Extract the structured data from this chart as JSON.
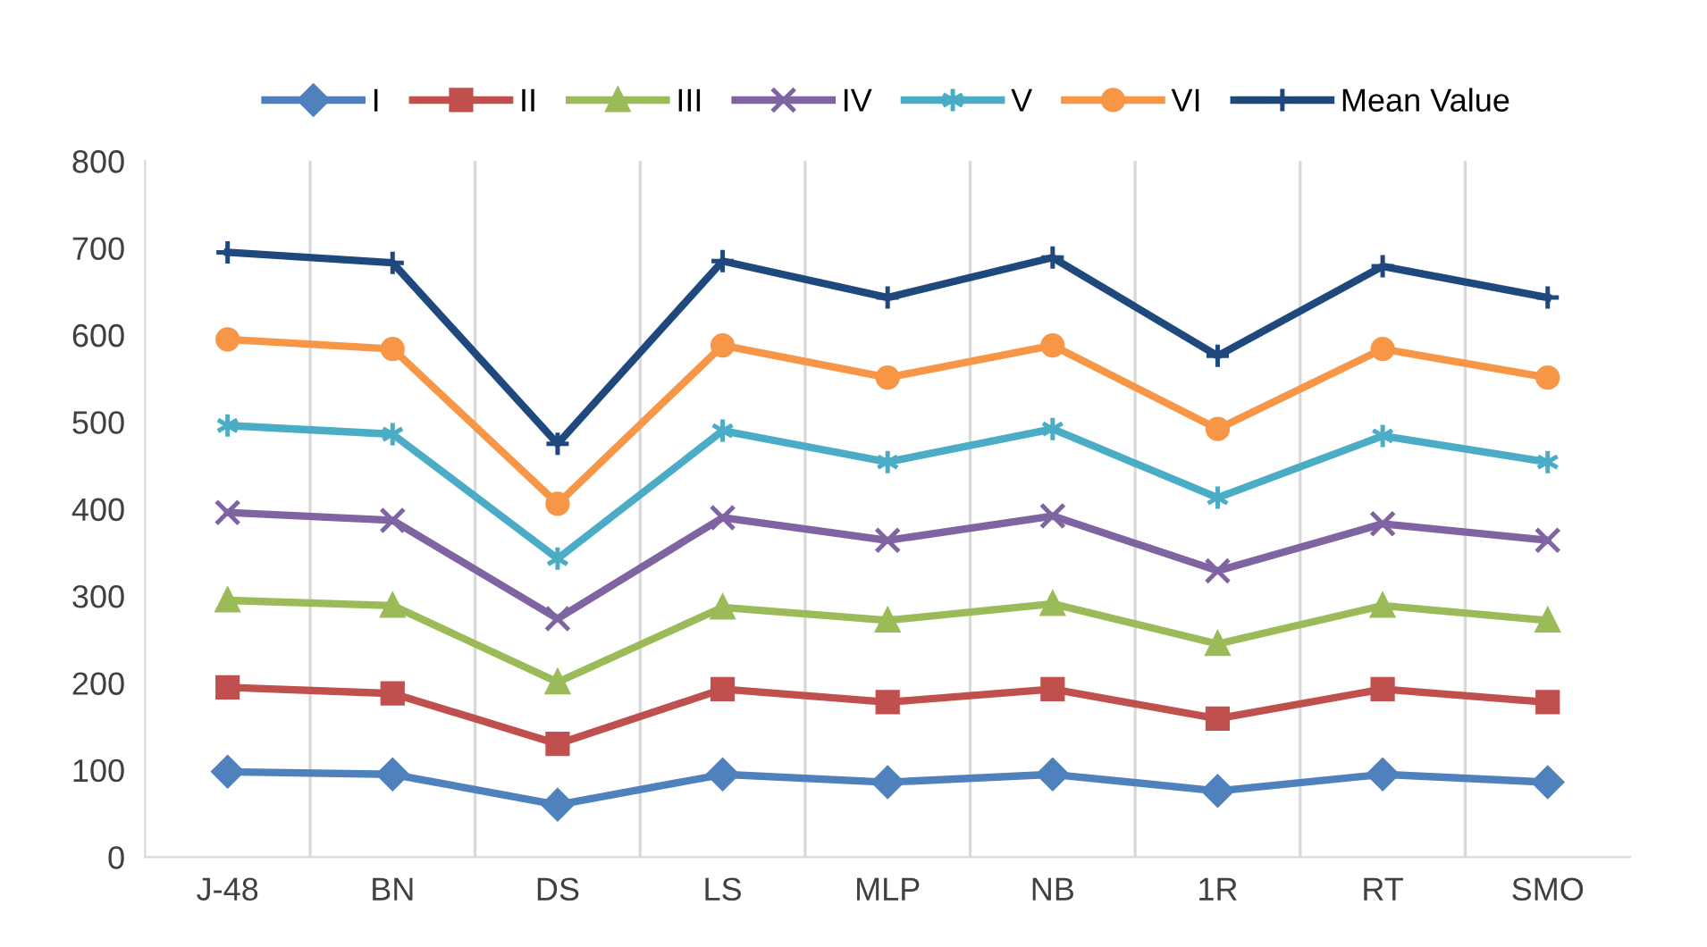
{
  "chart_data": {
    "type": "line",
    "categories": [
      "J-48",
      "BN",
      "DS",
      "LS",
      "MLP",
      "NB",
      "1R",
      "RT",
      "SMO"
    ],
    "series": [
      {
        "name": "I",
        "color": "#4f81bd",
        "marker": "diamond",
        "values": [
          98,
          95,
          60,
          95,
          86,
          95,
          76,
          95,
          86
        ]
      },
      {
        "name": "II",
        "color": "#c0504d",
        "marker": "square",
        "values": [
          195,
          188,
          130,
          193,
          178,
          193,
          159,
          193,
          178
        ]
      },
      {
        "name": "III",
        "color": "#9bbb59",
        "marker": "triangle",
        "values": [
          295,
          289,
          201,
          287,
          272,
          291,
          245,
          289,
          272
        ]
      },
      {
        "name": "IV",
        "color": "#8064a2",
        "marker": "x",
        "values": [
          396,
          387,
          274,
          390,
          364,
          392,
          329,
          383,
          364
        ]
      },
      {
        "name": "V",
        "color": "#4bacc6",
        "marker": "cross",
        "values": [
          496,
          486,
          343,
          490,
          454,
          492,
          413,
          484,
          454
        ]
      },
      {
        "name": "VI",
        "color": "#f79646",
        "marker": "circle",
        "values": [
          595,
          584,
          406,
          588,
          551,
          588,
          492,
          584,
          551
        ]
      },
      {
        "name": "Mean Value",
        "color": "#1f497d",
        "marker": "cross",
        "values": [
          695,
          683,
          475,
          685,
          643,
          689,
          576,
          679,
          643
        ]
      }
    ],
    "ylim": [
      0,
      800
    ],
    "yticks": [
      0,
      100,
      200,
      300,
      400,
      500,
      600,
      700,
      800
    ],
    "grid": "x",
    "legend": "top"
  }
}
